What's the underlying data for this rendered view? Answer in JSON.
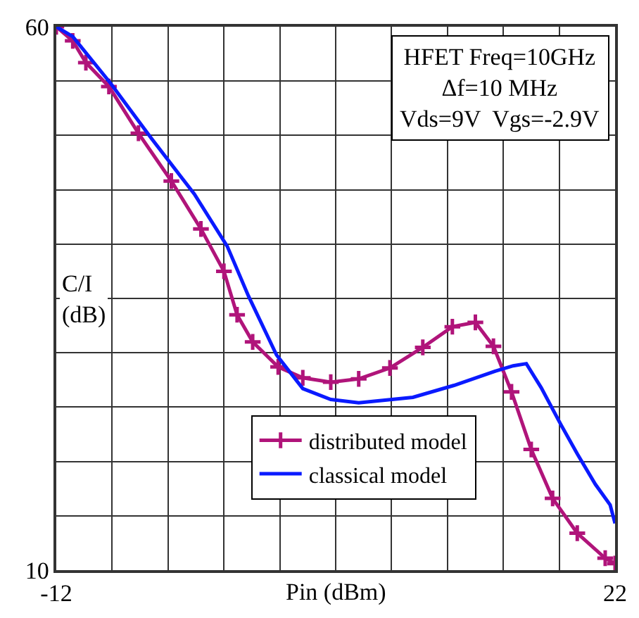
{
  "chart_data": {
    "type": "line",
    "xlabel": "Pin (dBm)",
    "ylabel": "C/I\n(dB)",
    "annotations": [
      "HFET Freq=10GHz\nΔf=10 MHz\nVds=9V  Vgs=-2.9V"
    ],
    "xlim": [
      -12,
      22
    ],
    "ylim": [
      10,
      60
    ],
    "xticks": [
      -12,
      {
        "value": -8.6,
        "label": null
      },
      {
        "value": -5.2,
        "label": null
      },
      {
        "value": -1.8,
        "label": null
      },
      {
        "value": 1.6,
        "label": null
      },
      {
        "value": 5,
        "label": null
      },
      {
        "value": 8.4,
        "label": null
      },
      {
        "value": 11.8,
        "label": null
      },
      {
        "value": 15.2,
        "label": null
      },
      {
        "value": 18.6,
        "label": null
      },
      22
    ],
    "yticks": [
      10,
      {
        "value": 15,
        "label": null
      },
      {
        "value": 20,
        "label": null
      },
      {
        "value": 25,
        "label": null
      },
      {
        "value": 30,
        "label": null
      },
      {
        "value": 35,
        "label": null
      },
      {
        "value": 40,
        "label": null
      },
      {
        "value": 45,
        "label": null
      },
      {
        "value": 50,
        "label": null
      },
      {
        "value": 55,
        "label": null
      },
      60
    ],
    "grid": true,
    "legend": "bottom",
    "series": [
      {
        "name": "distributed model",
        "color": "#b0147a",
        "marker": "cross",
        "x": [
          -12,
          -11,
          -10.2,
          -8.8,
          -7,
          -5,
          -3.2,
          -1.8,
          -1,
          -0.05,
          1.5,
          3,
          4.7,
          6.4,
          8.3,
          10.3,
          12.1,
          13.5,
          14.6,
          15.7,
          16.9,
          18.2,
          19.7,
          21.4,
          22
        ],
        "values": [
          60,
          58.7,
          56.7,
          54.5,
          50.2,
          45.8,
          41.4,
          37.5,
          33.5,
          31,
          28.7,
          27.7,
          27.3,
          27.6,
          28.6,
          30.5,
          32.4,
          32.8,
          30.6,
          26.4,
          21.1,
          16.6,
          13.4,
          11.1,
          10.6
        ]
      },
      {
        "name": "classical model",
        "color": "#0a1aff",
        "marker": "none",
        "x": [
          -12,
          -11,
          -8.7,
          -6.2,
          -3.6,
          -1.6,
          -0.3,
          1.4,
          3,
          4.7,
          6.4,
          9.7,
          12.2,
          14.7,
          15.8,
          16.6,
          17.5,
          18.7,
          19.7,
          20.8,
          21.7,
          22
        ],
        "values": [
          60,
          59.1,
          54.8,
          49.7,
          44.6,
          39.8,
          35.2,
          29.8,
          26.7,
          25.7,
          25.4,
          25.9,
          27,
          28.3,
          28.8,
          29,
          26.8,
          23.4,
          20.7,
          17.9,
          16,
          14.3
        ]
      }
    ]
  }
}
